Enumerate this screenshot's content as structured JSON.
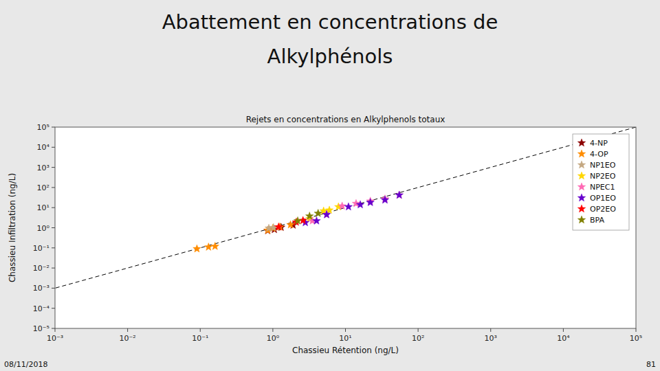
{
  "chart_data": {
    "type": "scatter",
    "title": [
      "Abattement en concentrations de",
      "Alkylphénols"
    ],
    "subtitle": "Rejets en concentrations en Alkylphenols totaux",
    "x_label": "Chassieu Rétention (ng/L)",
    "y_label": "Chassieu Infiltration (ng/L)",
    "annotations": [
      "08/11/2018",
      "81"
    ],
    "log": true,
    "grid": false,
    "legend": "upper right",
    "marker": "star",
    "xlim": [
      0.001,
      100000
    ],
    "ylim": [
      1e-05,
      100000
    ],
    "xticks": [
      {
        "value": 0.001,
        "label": "10⁻³"
      },
      {
        "value": 0.01,
        "label": "10⁻²"
      },
      {
        "value": 0.1,
        "label": "10⁻¹"
      },
      {
        "value": 1,
        "label": "10⁰"
      },
      {
        "value": 10,
        "label": "10¹"
      },
      {
        "value": 100,
        "label": "10²"
      },
      {
        "value": 1000,
        "label": "10³"
      },
      {
        "value": 10000,
        "label": "10⁴"
      },
      {
        "value": 100000,
        "label": "10⁵"
      }
    ],
    "yticks": [
      {
        "value": 1e-05,
        "label": "10⁻⁵"
      },
      {
        "value": 0.0001,
        "label": "10⁻⁴"
      },
      {
        "value": 0.001,
        "label": "10⁻³"
      },
      {
        "value": 0.01,
        "label": "10⁻²"
      },
      {
        "value": 0.1,
        "label": "10⁻¹"
      },
      {
        "value": 1,
        "label": "10⁰"
      },
      {
        "value": 10,
        "label": "10¹"
      },
      {
        "value": 100,
        "label": "10²"
      },
      {
        "value": 1000,
        "label": "10³"
      },
      {
        "value": 10000,
        "label": "10⁴"
      },
      {
        "value": 100000,
        "label": "10⁵"
      }
    ],
    "series": [
      {
        "name": "4-NP",
        "color": "#8B0000",
        "x": [
          0.85,
          1.05,
          1.3,
          1.9
        ],
        "values": [
          0.72,
          0.82,
          1.05,
          1.35
        ]
      },
      {
        "name": "4-OP",
        "color": "#FF8C00",
        "x": [
          0.09,
          0.13,
          0.16,
          0.85,
          1.0,
          1.25,
          1.75
        ],
        "values": [
          0.09,
          0.11,
          0.12,
          0.75,
          0.95,
          1.1,
          1.4
        ]
      },
      {
        "name": "NP1EO",
        "color": "#C4A882",
        "x": [
          0.88,
          1.02
        ],
        "values": [
          0.95,
          1.02
        ]
      },
      {
        "name": "NP2EO",
        "color": "#FFD700",
        "x": [
          3.2,
          5.0,
          6.0,
          8.0
        ],
        "values": [
          2.8,
          6.8,
          7.5,
          11.0
        ]
      },
      {
        "name": "NPEC1",
        "color": "#FF69B4",
        "x": [
          3.5,
          5.5,
          9.0,
          14.0,
          22.0,
          35.0,
          55.0
        ],
        "values": [
          2.2,
          4.5,
          12.0,
          16.0,
          21.0,
          27.0,
          42.0
        ]
      },
      {
        "name": "OP1EO",
        "color": "#6600CC",
        "x": [
          2.8,
          4.0,
          5.5,
          11.0,
          16.0,
          22.0,
          35.0,
          55.0
        ],
        "values": [
          1.8,
          2.2,
          4.5,
          11.0,
          14.0,
          18.0,
          24.0,
          42.0
        ]
      },
      {
        "name": "OP2EO",
        "color": "#FF0000",
        "x": [
          1.2,
          2.1,
          2.6
        ],
        "values": [
          1.1,
          1.9,
          2.3
        ]
      },
      {
        "name": "BPA",
        "color": "#808000",
        "x": [
          2.2,
          3.2,
          4.2
        ],
        "values": [
          2.2,
          3.8,
          5.2
        ]
      }
    ]
  }
}
